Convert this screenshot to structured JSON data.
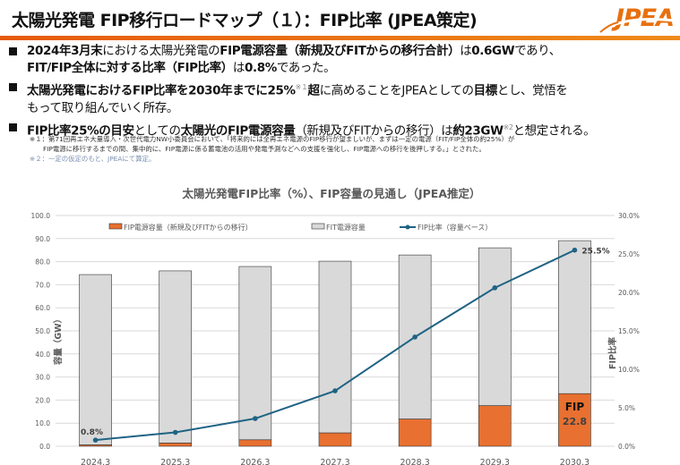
{
  "header": {
    "title": "太陽光発電 FIP移行ロードマップ（１）：FIP比率 (JPEA策定)",
    "logo_text": "JPEA",
    "accent_color": "#e8650f"
  },
  "bullets": [
    {
      "lines": [
        [
          {
            "t": "2024年3月末",
            "b": true
          },
          {
            "t": "における太陽光発電の",
            "b": false
          },
          {
            "t": "FIP電源容量（新規及びFITからの移行合計）",
            "b": true
          },
          {
            "t": "は",
            "b": false
          },
          {
            "t": "0.6GW",
            "b": true
          },
          {
            "t": "であり、",
            "b": false
          }
        ],
        [
          {
            "t": "FIT/FIP全体に対する比率（FIP比率）",
            "b": true
          },
          {
            "t": "は",
            "b": false
          },
          {
            "t": "0.8%",
            "b": true
          },
          {
            "t": "であった。",
            "b": false
          }
        ]
      ]
    },
    {
      "lines": [
        [
          {
            "t": "太陽光発電におけるFIP比率を2030年までに25%",
            "b": true
          },
          {
            "t": "※１",
            "sup": true
          },
          {
            "t": "超",
            "b": true
          },
          {
            "t": "に高めることをJPEAとしての",
            "b": false
          },
          {
            "t": "目標",
            "b": true
          },
          {
            "t": "とし、覚悟を",
            "b": false
          }
        ],
        [
          {
            "t": "もって取り組んでいく所存。",
            "b": false
          }
        ]
      ]
    },
    {
      "lines": [
        [
          {
            "t": "FIP比率25%の目安",
            "b": true
          },
          {
            "t": "としての",
            "b": false
          },
          {
            "t": "太陽光のFIP電源容量",
            "b": true
          },
          {
            "t": "（新規及びFITからの移行）は",
            "b": false
          },
          {
            "t": "約23GW",
            "b": true
          },
          {
            "t": "※2",
            "sup": true
          },
          {
            "t": "と想定される。",
            "b": false
          }
        ]
      ]
    }
  ],
  "notes": {
    "note1_line1": "※１：第71回再エネ大量導入・次世代電力NW小委員会において、「将来的には全再エネ電源のFIP移行が望ましいが、まずは一定の電源（FIT/FIP全体の約25%）が",
    "note1_line2": "FIP電源に移行するまでの間、集中的に、FIP電源に係る蓄電池の活用や発電予測などへの支援を強化し、FIP電源への移行を後押しする。」とされた。",
    "note2": "※２：一定の仮定のもと、JPEAにて算定。"
  },
  "chart_data": {
    "type": "bar",
    "title": "太陽光発電FIP比率（%）、FIP容量の見通し（JPEA推定）",
    "categories": [
      "2024.3",
      "2025.3",
      "2026.3",
      "2027.3",
      "2028.3",
      "2029.3",
      "2030.3"
    ],
    "ylabel": "容量（GW）",
    "y2label": "FIP比率",
    "ylim": [
      0,
      100
    ],
    "y2lim": [
      0,
      30
    ],
    "yticks": [
      "0.0",
      "10.0",
      "20.0",
      "30.0",
      "40.0",
      "50.0",
      "60.0",
      "70.0",
      "80.0",
      "90.0",
      "100.0"
    ],
    "y2ticks": [
      "0.0%",
      "5.0%",
      "10.0%",
      "15.0%",
      "20.0%",
      "25.0%",
      "30.0%"
    ],
    "legend_position": "top",
    "series": [
      {
        "name": "FIP電源容量（新規及びFITからの移行）",
        "kind": "bar-stacked",
        "color": "#e87030",
        "values": [
          0.6,
          1.4,
          2.8,
          5.8,
          11.8,
          17.6,
          22.8
        ]
      },
      {
        "name": "FIT電源容量",
        "kind": "bar-stacked",
        "color": "#d9d9d9",
        "values": [
          73.8,
          74.6,
          75.1,
          74.4,
          71.1,
          68.4,
          66.3
        ]
      },
      {
        "name": "FIP比率（容量ベース）",
        "kind": "line",
        "axis": "right",
        "color": "#1f6384",
        "values": [
          0.8,
          1.8,
          3.6,
          7.2,
          14.2,
          20.6,
          25.5
        ]
      }
    ],
    "annotations": {
      "first_ratio": "0.8%",
      "last_ratio": "25.5%",
      "fip_label": "FIP",
      "fip_value": "22.8"
    }
  }
}
